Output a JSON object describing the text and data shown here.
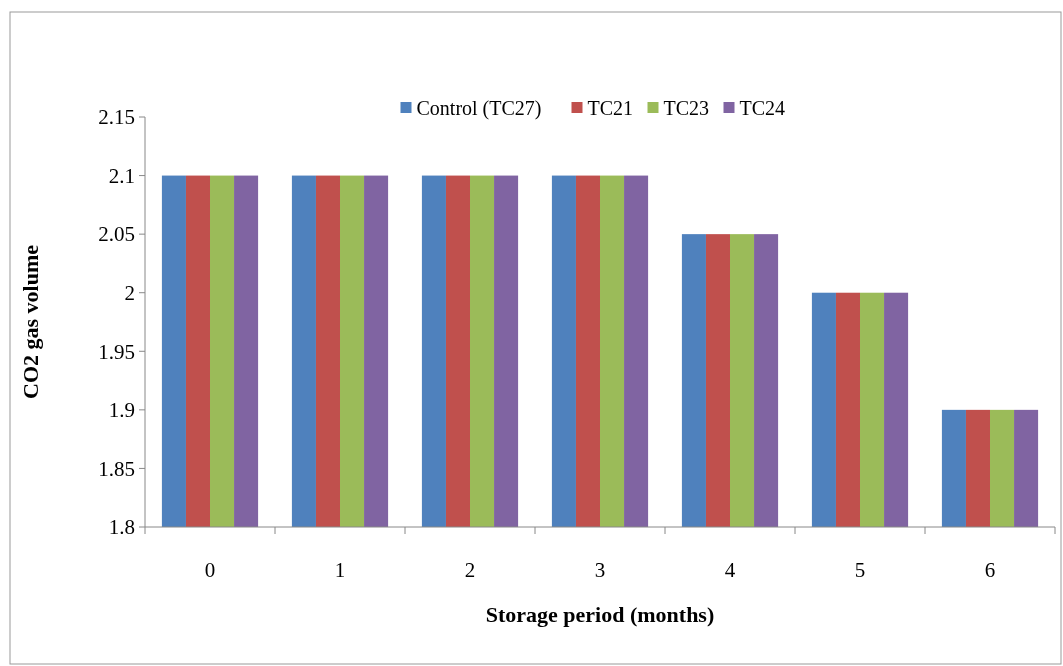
{
  "chart_data": {
    "type": "bar",
    "xlabel": "Storage period (months)",
    "ylabel": "CO2 gas volume",
    "categories": [
      "0",
      "1",
      "2",
      "3",
      "4",
      "5",
      "6"
    ],
    "series": [
      {
        "name": "Control (TC27)",
        "color": "#4f81bd",
        "values": [
          2.1,
          2.1,
          2.1,
          2.1,
          2.05,
          2.0,
          1.9
        ]
      },
      {
        "name": "TC21",
        "color": "#c0504d",
        "values": [
          2.1,
          2.1,
          2.1,
          2.1,
          2.05,
          2.0,
          1.9
        ]
      },
      {
        "name": "TC23",
        "color": "#9bbb59",
        "values": [
          2.1,
          2.1,
          2.1,
          2.1,
          2.05,
          2.0,
          1.9
        ]
      },
      {
        "name": "TC24",
        "color": "#8064a2",
        "values": [
          2.1,
          2.1,
          2.1,
          2.1,
          2.05,
          2.0,
          1.9
        ]
      }
    ],
    "ylim": [
      1.8,
      2.15
    ],
    "yticks": [
      1.8,
      {
        "value": 1.85,
        "label": "1.85"
      },
      1.9,
      {
        "value": 1.95,
        "label": "1.95"
      },
      2,
      {
        "value": 2.05,
        "label": "2.05"
      },
      2.1,
      {
        "value": 2.15,
        "label": "2.15"
      }
    ],
    "grid": false,
    "legend": "top"
  }
}
